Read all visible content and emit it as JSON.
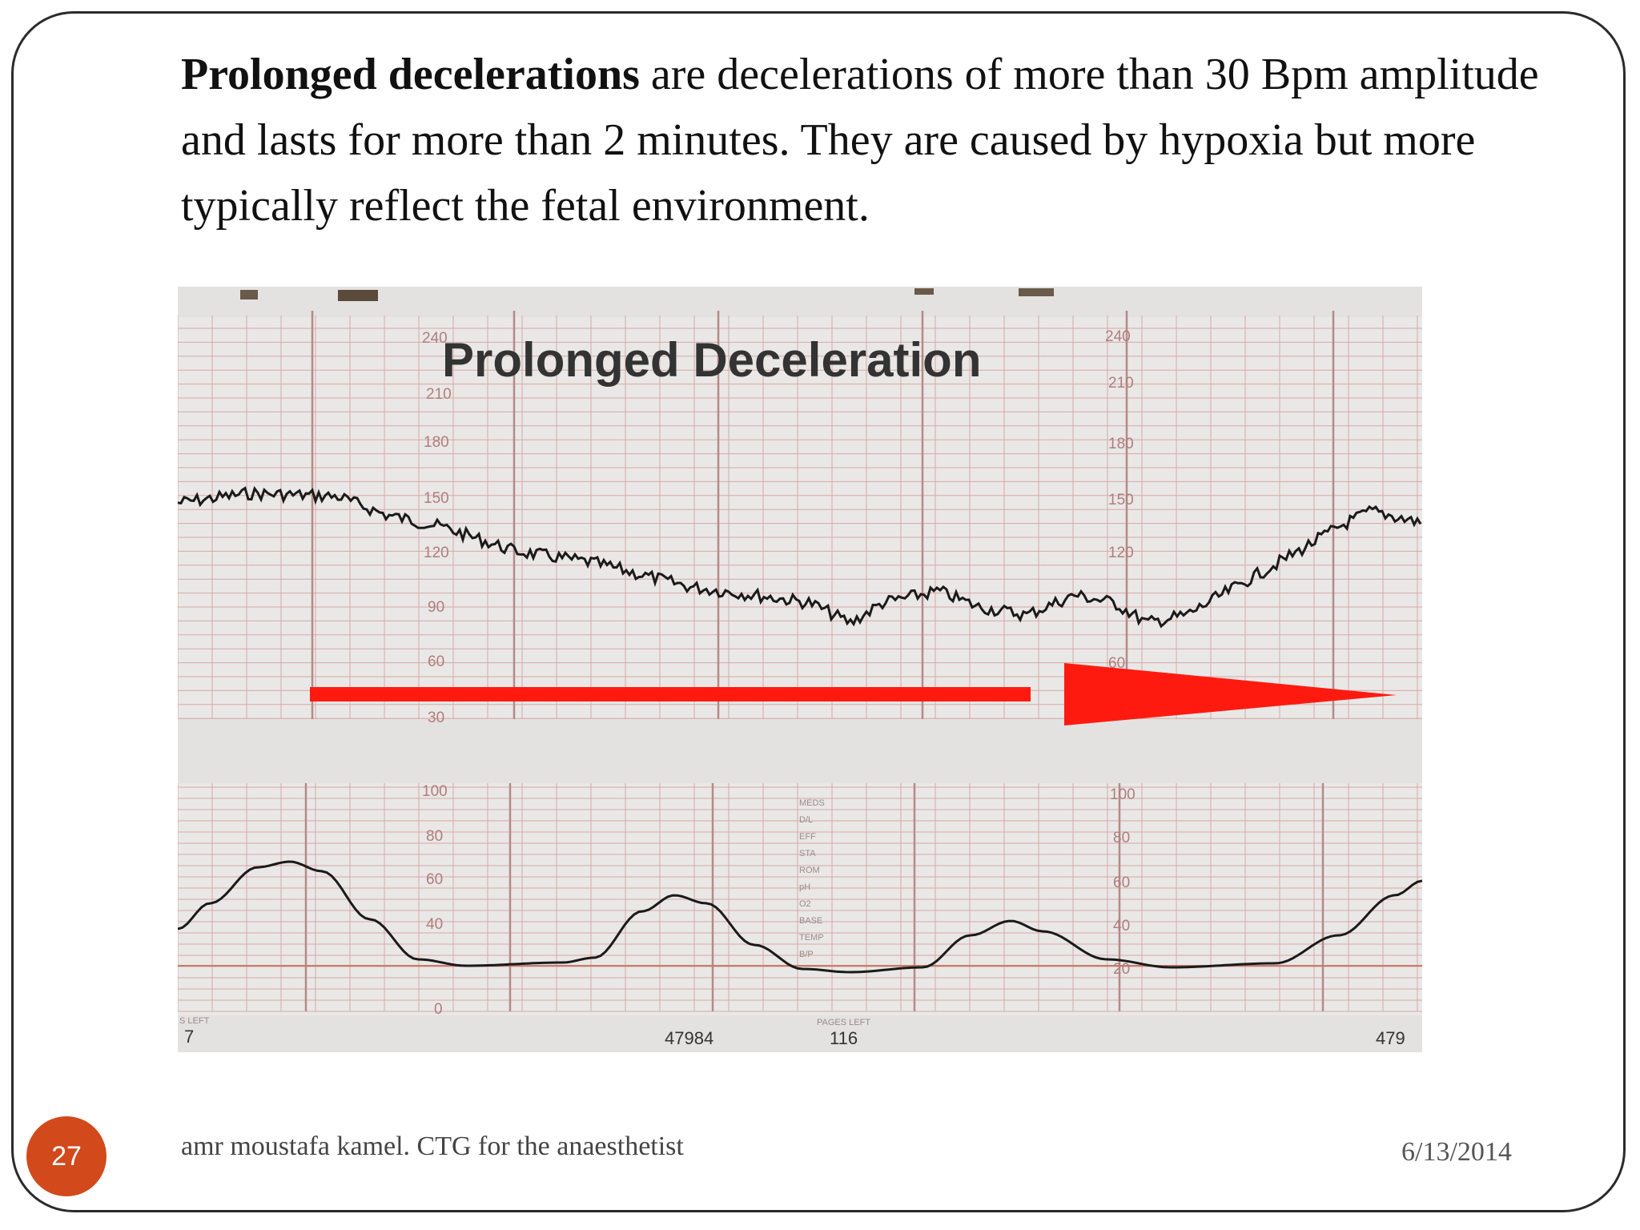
{
  "slide": {
    "heading_bold": "Prolonged decelerations",
    "heading_rest": " are decelerations of more than 30 Bpm amplitude  and lasts for more than 2 minutes. They are caused by hypoxia but more typically reflect the fetal environment.",
    "footer": "amr moustafa kamel. CTG for the anaesthetist",
    "date": "6/13/2014",
    "page_number": "27"
  },
  "figure": {
    "title": "Prolonged Deceleration",
    "fhr_scale": [
      "240",
      "210",
      "180",
      "150",
      "120",
      "90",
      "60",
      "30"
    ],
    "uc_scale": [
      "100",
      "80",
      "60",
      "40",
      "20",
      "0"
    ],
    "paper_label_left": "S LEFT",
    "paper_label_left_num": "7",
    "paper_serial": "47984",
    "pages_left_label": "PAGES LEFT",
    "pages_left_value": "116",
    "paper_serial_right": "479",
    "side_labels": [
      "MEDS",
      "D/L",
      "EFF",
      "STA",
      "ROM",
      "pH",
      "O2",
      "BASE",
      "TEMP",
      "B/P"
    ],
    "arrow_color": "#ff1a10",
    "trace_color": "#1a1a1a",
    "grid_color": "#d8a7a7"
  }
}
